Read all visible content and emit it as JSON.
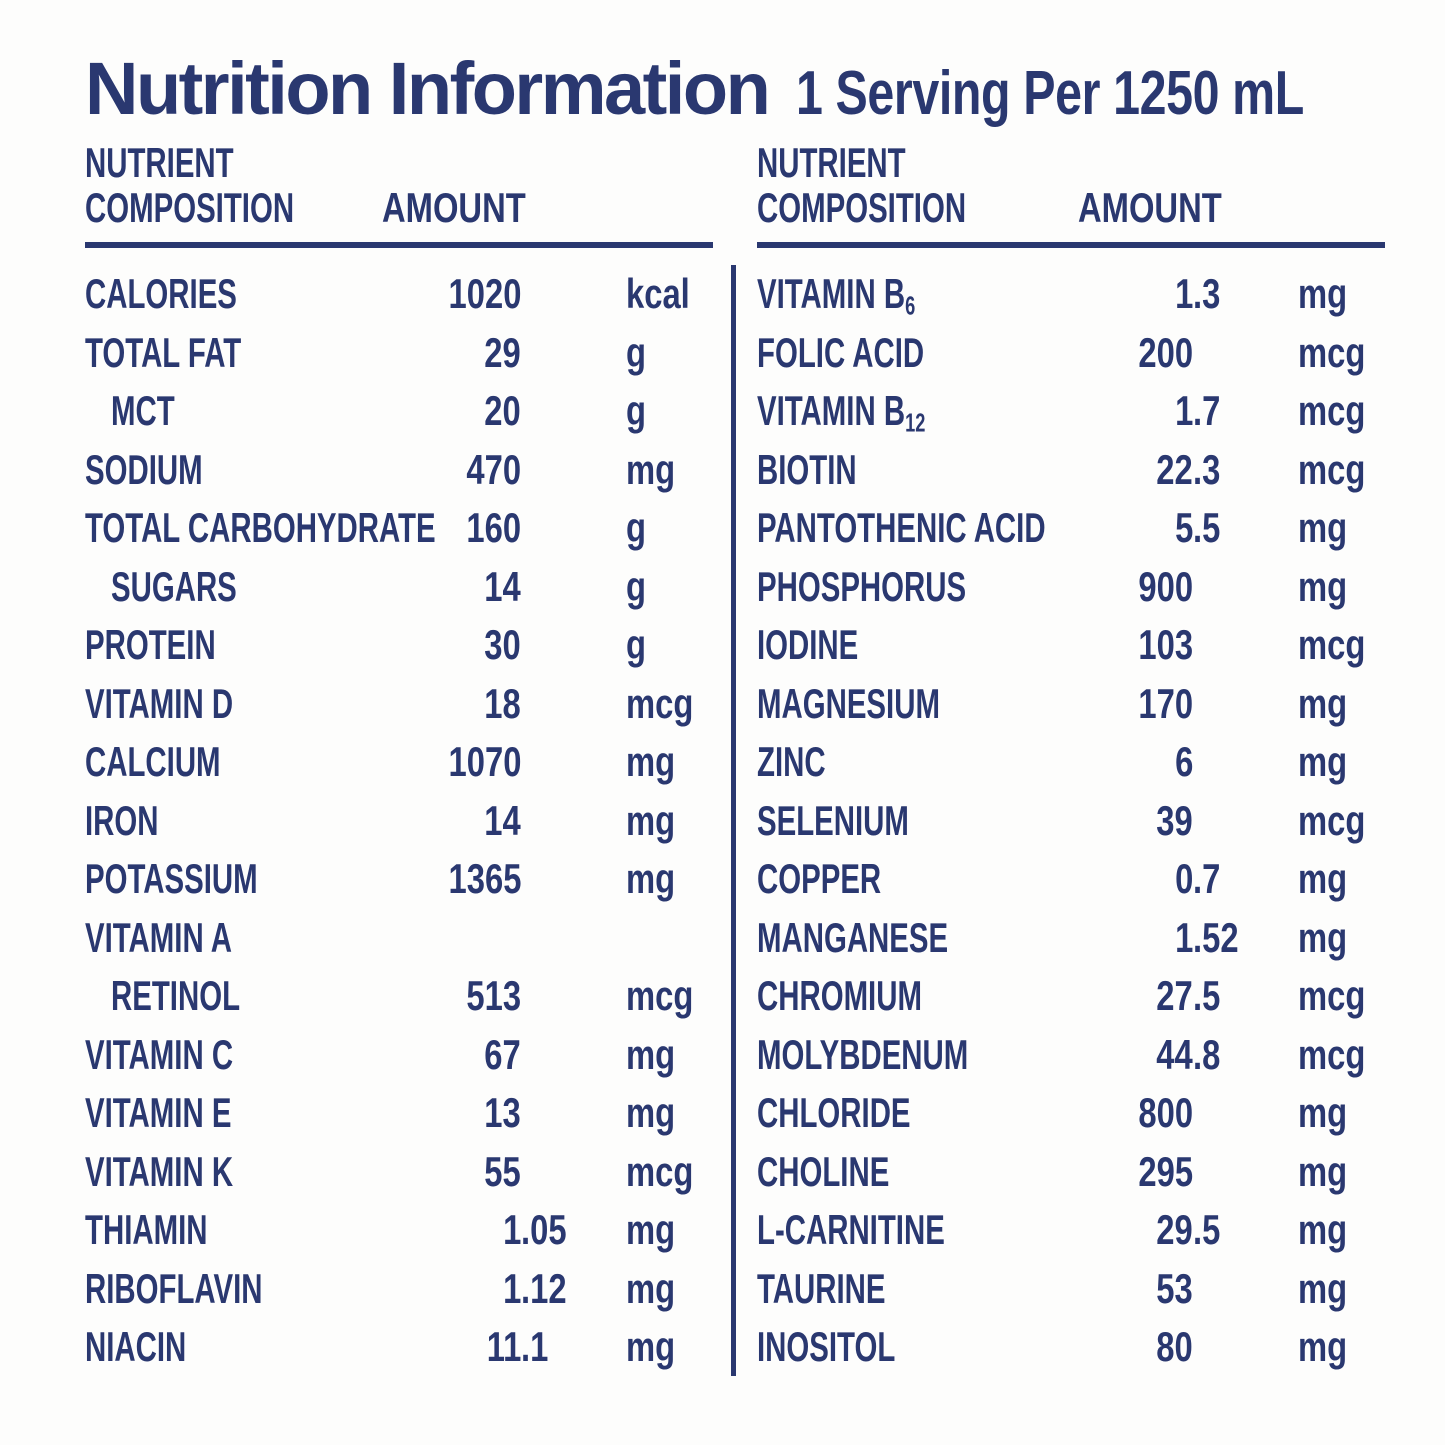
{
  "colors": {
    "ink": "#2a3870",
    "background": "#fdfdfc"
  },
  "header": {
    "title": "Nutrition Information",
    "serving": "1 Serving Per 1250 mL"
  },
  "table": {
    "column_header": {
      "nutrient": "NUTRIENT",
      "composition": "COMPOSITION",
      "amount": "AMOUNT"
    },
    "left_rows": [
      {
        "label": "CALORIES",
        "amount": "1020",
        "unit": "kcal"
      },
      {
        "label": "TOTAL FAT",
        "amount": "29",
        "unit": "g"
      },
      {
        "label": "MCT",
        "indent": true,
        "amount": "20",
        "unit": "g"
      },
      {
        "label": "SODIUM",
        "amount": "470",
        "unit": "mg"
      },
      {
        "label": "TOTAL CARBOHYDRATE",
        "amount": "160",
        "unit": "g"
      },
      {
        "label": "SUGARS",
        "indent": true,
        "amount": "14",
        "unit": "g"
      },
      {
        "label": "PROTEIN",
        "amount": "30",
        "unit": "g"
      },
      {
        "label": "VITAMIN D",
        "amount": "18",
        "unit": "mcg"
      },
      {
        "label": "CALCIUM",
        "amount": "1070",
        "unit": "mg"
      },
      {
        "label": "IRON",
        "amount": "14",
        "unit": "mg"
      },
      {
        "label": "POTASSIUM",
        "amount": "1365",
        "unit": "mg"
      },
      {
        "label": "VITAMIN A",
        "amount": "",
        "unit": ""
      },
      {
        "label": "RETINOL",
        "indent": true,
        "amount": "513",
        "unit": "mcg"
      },
      {
        "label": "VITAMIN C",
        "amount": "67",
        "unit": "mg"
      },
      {
        "label": "VITAMIN E",
        "amount": "13",
        "unit": "mg"
      },
      {
        "label": "VITAMIN K",
        "amount": "55",
        "unit": "mcg"
      },
      {
        "label": "THIAMIN",
        "amount": "1.05",
        "unit": "mg"
      },
      {
        "label": "RIBOFLAVIN",
        "amount": "1.12",
        "unit": "mg"
      },
      {
        "label": "NIACIN",
        "amount": "11.1",
        "unit": "mg"
      }
    ],
    "right_rows": [
      {
        "label": "VITAMIN B",
        "label_sub": "6",
        "amount": "1.3",
        "unit": "mg"
      },
      {
        "label": "FOLIC ACID",
        "amount": "200",
        "unit": "mcg"
      },
      {
        "label": "VITAMIN B",
        "label_sub": "12",
        "amount": "1.7",
        "unit": "mcg"
      },
      {
        "label": "BIOTIN",
        "amount": "22.3",
        "unit": "mcg"
      },
      {
        "label": "PANTOTHENIC ACID",
        "amount": "5.5",
        "unit": "mg"
      },
      {
        "label": "PHOSPHORUS",
        "amount": "900",
        "unit": "mg"
      },
      {
        "label": "IODINE",
        "amount": "103",
        "unit": "mcg"
      },
      {
        "label": "MAGNESIUM",
        "amount": "170",
        "unit": "mg"
      },
      {
        "label": "ZINC",
        "amount": "6",
        "unit": "mg"
      },
      {
        "label": "SELENIUM",
        "amount": "39",
        "unit": "mcg"
      },
      {
        "label": "COPPER",
        "amount": "0.7",
        "unit": "mg"
      },
      {
        "label": "MANGANESE",
        "amount": "1.52",
        "unit": "mg"
      },
      {
        "label": "CHROMIUM",
        "amount": "27.5",
        "unit": "mcg"
      },
      {
        "label": "MOLYBDENUM",
        "amount": "44.8",
        "unit": "mcg"
      },
      {
        "label": "CHLORIDE",
        "amount": "800",
        "unit": "mg"
      },
      {
        "label": "CHOLINE",
        "amount": "295",
        "unit": "mg"
      },
      {
        "label": "L-CARNITINE",
        "amount": "29.5",
        "unit": "mg"
      },
      {
        "label": "TAURINE",
        "amount": "53",
        "unit": "mg"
      },
      {
        "label": "INOSITOL",
        "amount": "80",
        "unit": "mg"
      }
    ]
  }
}
